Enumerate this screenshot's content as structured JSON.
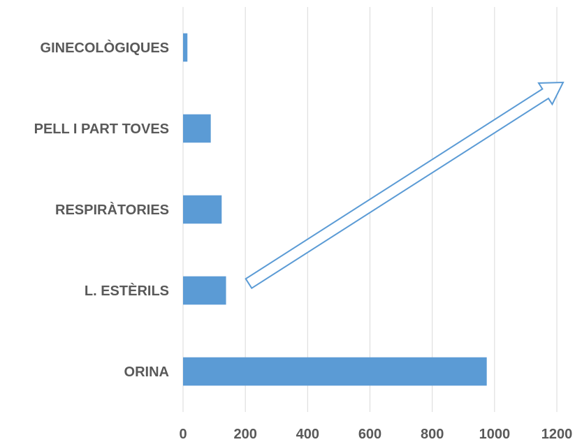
{
  "chart_data": {
    "type": "bar",
    "orientation": "horizontal",
    "categories": [
      "ORINA",
      "L. ESTÈRILS",
      "RESPIRÀTORIES",
      "PELL I PART TOVES",
      "GINECOLÒGIQUES"
    ],
    "values": [
      975,
      138,
      124,
      89,
      14
    ],
    "xlim": [
      0,
      1200
    ],
    "xticks": [
      "0",
      "200",
      "400",
      "600",
      "800",
      "1000",
      "1200"
    ],
    "grid": "vertical",
    "bar_color": "#5B9BD5",
    "grid_color": "#D9D9D9",
    "annotation": {
      "type": "block-arrow",
      "direction": "up-right",
      "color": "#5B9BD5"
    }
  }
}
